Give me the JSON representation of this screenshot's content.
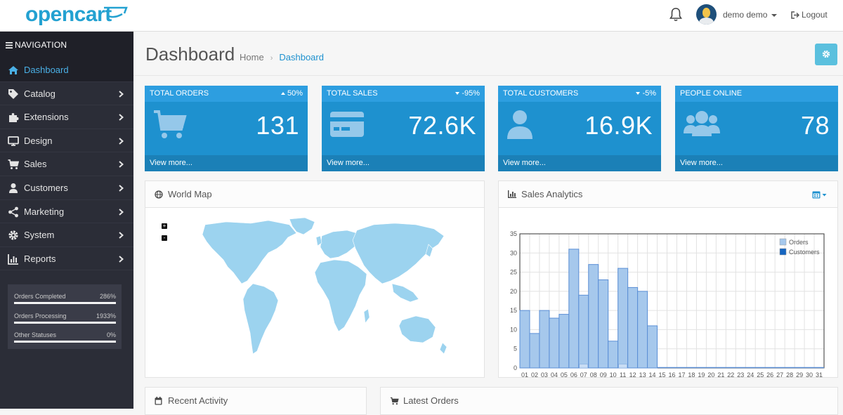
{
  "header": {
    "logo_text": "opencart",
    "user_name": "demo demo",
    "logout_label": "Logout"
  },
  "sidebar": {
    "heading": "NAVIGATION",
    "items": [
      {
        "label": "Dashboard",
        "icon": "home-icon",
        "active": true
      },
      {
        "label": "Catalog",
        "icon": "tag-icon"
      },
      {
        "label": "Extensions",
        "icon": "puzzle-icon"
      },
      {
        "label": "Design",
        "icon": "monitor-icon"
      },
      {
        "label": "Sales",
        "icon": "cart-icon"
      },
      {
        "label": "Customers",
        "icon": "user-icon"
      },
      {
        "label": "Marketing",
        "icon": "share-icon"
      },
      {
        "label": "System",
        "icon": "gear-icon"
      },
      {
        "label": "Reports",
        "icon": "bar-chart-icon"
      }
    ],
    "statuses": [
      {
        "label": "Orders Completed",
        "percent": "286%"
      },
      {
        "label": "Orders Processing",
        "percent": "1933%"
      },
      {
        "label": "Other Statuses",
        "percent": "0%"
      }
    ]
  },
  "page": {
    "title": "Dashboard",
    "breadcrumb": [
      "Home",
      "Dashboard"
    ]
  },
  "tiles": [
    {
      "title": "TOTAL ORDERS",
      "change": "50%",
      "direction": "up",
      "value": "131",
      "footer": "View more...",
      "icon": "shopping-cart-icon"
    },
    {
      "title": "TOTAL SALES",
      "change": "-95%",
      "direction": "down",
      "value": "72.6K",
      "footer": "View more...",
      "icon": "credit-card-icon"
    },
    {
      "title": "TOTAL CUSTOMERS",
      "change": "-5%",
      "direction": "down",
      "value": "16.9K",
      "footer": "View more...",
      "icon": "user-icon"
    },
    {
      "title": "PEOPLE ONLINE",
      "change": "",
      "direction": "",
      "value": "78",
      "footer": "View more...",
      "icon": "users-icon"
    }
  ],
  "panels": {
    "map_title": "World Map",
    "analytics_title": "Sales Analytics",
    "recent_title": "Recent Activity",
    "latest_title": "Latest Orders",
    "zoom_in": "+",
    "zoom_out": "-"
  },
  "colors": {
    "accent": "#1e91cf",
    "sidebar_bg": "#2b2d37",
    "map_land": "#9cd3ef",
    "orders_series": "#a6c8ec",
    "customers_series": "#1565c0"
  },
  "chart_data": {
    "type": "bar",
    "categories": [
      "01",
      "02",
      "03",
      "04",
      "05",
      "06",
      "07",
      "08",
      "09",
      "10",
      "11",
      "12",
      "13",
      "14",
      "15",
      "16",
      "17",
      "18",
      "19",
      "20",
      "21",
      "22",
      "23",
      "24",
      "25",
      "26",
      "27",
      "28",
      "29",
      "30",
      "31"
    ],
    "series": [
      {
        "name": "Orders",
        "values": [
          15,
          9,
          15,
          13,
          14,
          31,
          19,
          27,
          23,
          7,
          26,
          21,
          20,
          11,
          0,
          0,
          0,
          0,
          0,
          0,
          0,
          0,
          0,
          0,
          0,
          0,
          0,
          0,
          0,
          0,
          0
        ]
      },
      {
        "name": "Customers",
        "values": [
          0,
          0,
          0,
          0,
          0,
          0,
          1,
          0,
          0,
          0,
          1,
          0,
          0,
          0,
          0,
          0,
          0,
          0,
          0,
          0,
          0,
          0,
          0,
          0,
          0,
          0,
          0,
          0,
          0,
          0,
          0
        ]
      }
    ],
    "ylim": [
      0,
      35
    ],
    "yticks": [
      0,
      5,
      10,
      15,
      20,
      25,
      30,
      35
    ],
    "grid": true,
    "legend_position": "top-right"
  }
}
